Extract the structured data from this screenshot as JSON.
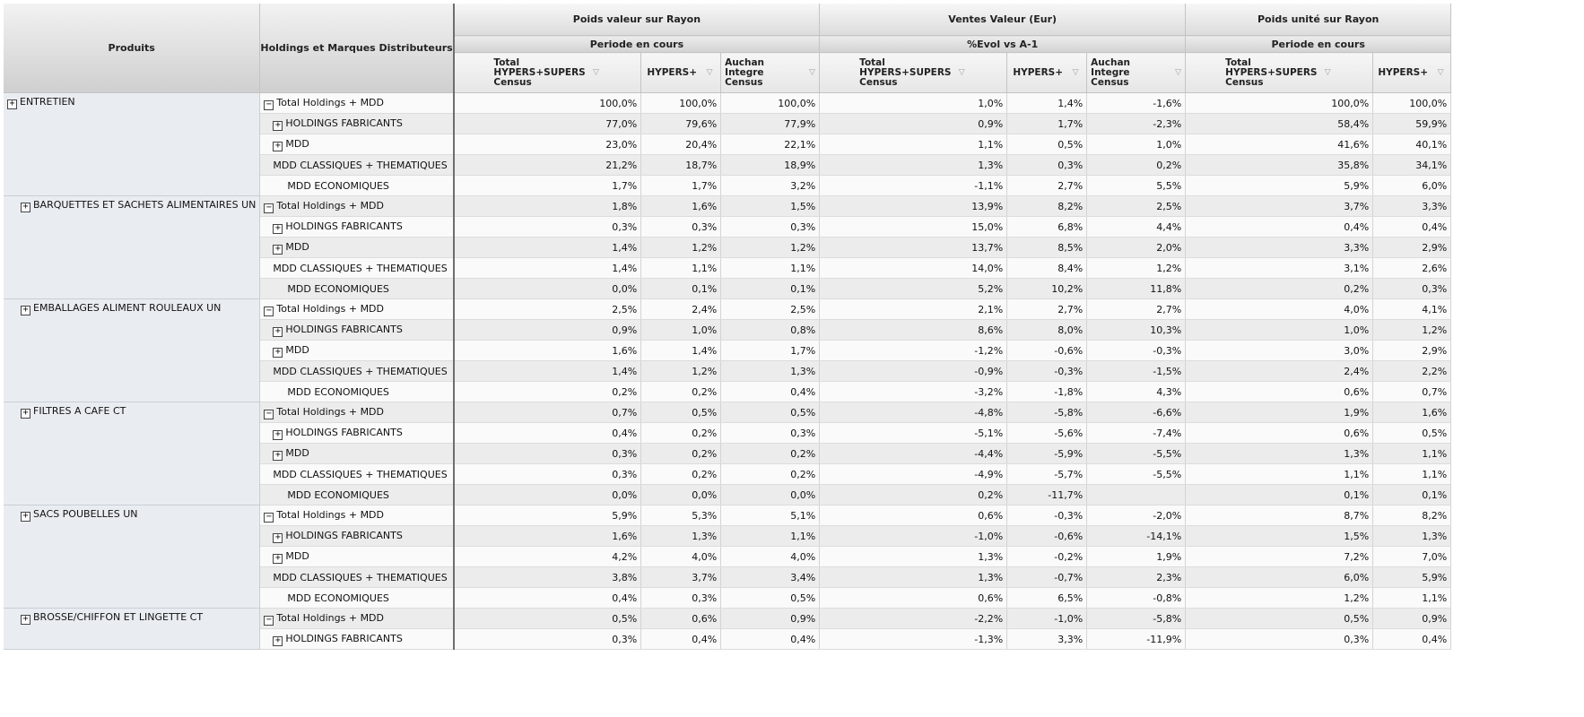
{
  "header": {
    "products_label": "Produits",
    "holdings_label": "Holdings et Marques Distributeurs",
    "groups": [
      {
        "title": "Poids valeur sur Rayon",
        "period": "Periode en cours"
      },
      {
        "title": "Ventes Valeur (Eur)",
        "period": "%Evol vs A-1"
      },
      {
        "title": "Poids unité sur Rayon",
        "period": "Periode en cours"
      }
    ],
    "columns": [
      "Total HYPERS+SUPERS Census",
      "HYPERS+",
      "Auchan Integre Census",
      "Total HYPERS+SUPERS Census",
      "HYPERS+",
      "Auchan Integre Census",
      "Total HYPERS+SUPERS Census",
      "HYPERS+"
    ],
    "filter_icon": "filter-icon"
  },
  "holding_labels": [
    "Total Holdings + MDD",
    "HOLDINGS FABRICANTS",
    "MDD",
    "MDD CLASSIQUES + THEMATIQUES",
    "MDD ECONOMIQUES"
  ],
  "toggle_icons": {
    "expand": "plus-box-icon",
    "collapse": "minus-box-icon"
  },
  "toggle_glyphs": {
    "expand": "+",
    "collapse": "−"
  },
  "products": [
    {
      "name": "ENTRETIEN",
      "rows": [
        [
          "100,0%",
          "100,0%",
          "100,0%",
          "1,0%",
          "1,4%",
          "-1,6%",
          "100,0%",
          "100,0%"
        ],
        [
          "77,0%",
          "79,6%",
          "77,9%",
          "0,9%",
          "1,7%",
          "-2,3%",
          "58,4%",
          "59,9%"
        ],
        [
          "23,0%",
          "20,4%",
          "22,1%",
          "1,1%",
          "0,5%",
          "1,0%",
          "41,6%",
          "40,1%"
        ],
        [
          "21,2%",
          "18,7%",
          "18,9%",
          "1,3%",
          "0,3%",
          "0,2%",
          "35,8%",
          "34,1%"
        ],
        [
          "1,7%",
          "1,7%",
          "3,2%",
          "-1,1%",
          "2,7%",
          "5,5%",
          "5,9%",
          "6,0%"
        ]
      ]
    },
    {
      "name": "BARQUETTES ET SACHETS ALIMENTAIRES UN",
      "rows": [
        [
          "1,8%",
          "1,6%",
          "1,5%",
          "13,9%",
          "8,2%",
          "2,5%",
          "3,7%",
          "3,3%"
        ],
        [
          "0,3%",
          "0,3%",
          "0,3%",
          "15,0%",
          "6,8%",
          "4,4%",
          "0,4%",
          "0,4%"
        ],
        [
          "1,4%",
          "1,2%",
          "1,2%",
          "13,7%",
          "8,5%",
          "2,0%",
          "3,3%",
          "2,9%"
        ],
        [
          "1,4%",
          "1,1%",
          "1,1%",
          "14,0%",
          "8,4%",
          "1,2%",
          "3,1%",
          "2,6%"
        ],
        [
          "0,0%",
          "0,1%",
          "0,1%",
          "5,2%",
          "10,2%",
          "11,8%",
          "0,2%",
          "0,3%"
        ]
      ]
    },
    {
      "name": "EMBALLAGES ALIMENT ROULEAUX UN",
      "rows": [
        [
          "2,5%",
          "2,4%",
          "2,5%",
          "2,1%",
          "2,7%",
          "2,7%",
          "4,0%",
          "4,1%"
        ],
        [
          "0,9%",
          "1,0%",
          "0,8%",
          "8,6%",
          "8,0%",
          "10,3%",
          "1,0%",
          "1,2%"
        ],
        [
          "1,6%",
          "1,4%",
          "1,7%",
          "-1,2%",
          "-0,6%",
          "-0,3%",
          "3,0%",
          "2,9%"
        ],
        [
          "1,4%",
          "1,2%",
          "1,3%",
          "-0,9%",
          "-0,3%",
          "-1,5%",
          "2,4%",
          "2,2%"
        ],
        [
          "0,2%",
          "0,2%",
          "0,4%",
          "-3,2%",
          "-1,8%",
          "4,3%",
          "0,6%",
          "0,7%"
        ]
      ]
    },
    {
      "name": "FILTRES A CAFE CT",
      "rows": [
        [
          "0,7%",
          "0,5%",
          "0,5%",
          "-4,8%",
          "-5,8%",
          "-6,6%",
          "1,9%",
          "1,6%"
        ],
        [
          "0,4%",
          "0,2%",
          "0,3%",
          "-5,1%",
          "-5,6%",
          "-7,4%",
          "0,6%",
          "0,5%"
        ],
        [
          "0,3%",
          "0,2%",
          "0,2%",
          "-4,4%",
          "-5,9%",
          "-5,5%",
          "1,3%",
          "1,1%"
        ],
        [
          "0,3%",
          "0,2%",
          "0,2%",
          "-4,9%",
          "-5,7%",
          "-5,5%",
          "1,1%",
          "1,1%"
        ],
        [
          "0,0%",
          "0,0%",
          "0,0%",
          "0,2%",
          "-11,7%",
          "",
          "0,1%",
          "0,1%"
        ]
      ]
    },
    {
      "name": "SACS POUBELLES UN",
      "rows": [
        [
          "5,9%",
          "5,3%",
          "5,1%",
          "0,6%",
          "-0,3%",
          "-2,0%",
          "8,7%",
          "8,2%"
        ],
        [
          "1,6%",
          "1,3%",
          "1,1%",
          "-1,0%",
          "-0,6%",
          "-14,1%",
          "1,5%",
          "1,3%"
        ],
        [
          "4,2%",
          "4,0%",
          "4,0%",
          "1,3%",
          "-0,2%",
          "1,9%",
          "7,2%",
          "7,0%"
        ],
        [
          "3,8%",
          "3,7%",
          "3,4%",
          "1,3%",
          "-0,7%",
          "2,3%",
          "6,0%",
          "5,9%"
        ],
        [
          "0,4%",
          "0,3%",
          "0,5%",
          "0,6%",
          "6,5%",
          "-0,8%",
          "1,2%",
          "1,1%"
        ]
      ]
    },
    {
      "name": "BROSSE/CHIFFON ET LINGETTE CT",
      "rows": [
        [
          "0,5%",
          "0,6%",
          "0,9%",
          "-2,2%",
          "-1,0%",
          "-5,8%",
          "0,5%",
          "0,9%"
        ],
        [
          "0,3%",
          "0,4%",
          "0,4%",
          "-1,3%",
          "3,3%",
          "-11,9%",
          "0,3%",
          "0,4%"
        ]
      ]
    }
  ]
}
